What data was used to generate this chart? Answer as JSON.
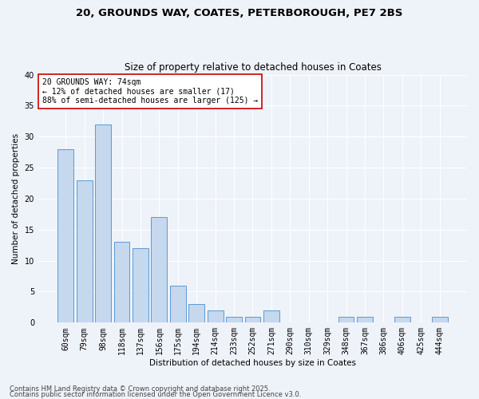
{
  "title_line1": "20, GROUNDS WAY, COATES, PETERBOROUGH, PE7 2BS",
  "title_line2": "Size of property relative to detached houses in Coates",
  "xlabel": "Distribution of detached houses by size in Coates",
  "ylabel": "Number of detached properties",
  "categories": [
    "60sqm",
    "79sqm",
    "98sqm",
    "118sqm",
    "137sqm",
    "156sqm",
    "175sqm",
    "194sqm",
    "214sqm",
    "233sqm",
    "252sqm",
    "271sqm",
    "290sqm",
    "310sqm",
    "329sqm",
    "348sqm",
    "367sqm",
    "386sqm",
    "406sqm",
    "425sqm",
    "444sqm"
  ],
  "values": [
    28,
    23,
    32,
    13,
    12,
    17,
    6,
    3,
    2,
    1,
    1,
    2,
    0,
    0,
    0,
    1,
    1,
    0,
    1,
    0,
    1
  ],
  "bar_color": "#c5d8ed",
  "bar_edge_color": "#5b9bd5",
  "annotation_text": "20 GROUNDS WAY: 74sqm\n← 12% of detached houses are smaller (17)\n88% of semi-detached houses are larger (125) →",
  "annotation_box_color": "#ffffff",
  "annotation_box_edge_color": "#cc0000",
  "ylim": [
    0,
    40
  ],
  "yticks": [
    0,
    5,
    10,
    15,
    20,
    25,
    30,
    35,
    40
  ],
  "bg_color": "#eef2f9",
  "plot_bg_color": "#eef2f9",
  "grid_color": "#ffffff",
  "footer_line1": "Contains HM Land Registry data © Crown copyright and database right 2025.",
  "footer_line2": "Contains public sector information licensed under the Open Government Licence v3.0.",
  "title_fontsize": 9.5,
  "subtitle_fontsize": 8.5,
  "axis_label_fontsize": 7.5,
  "tick_fontsize": 7,
  "annotation_fontsize": 7,
  "footer_fontsize": 6
}
